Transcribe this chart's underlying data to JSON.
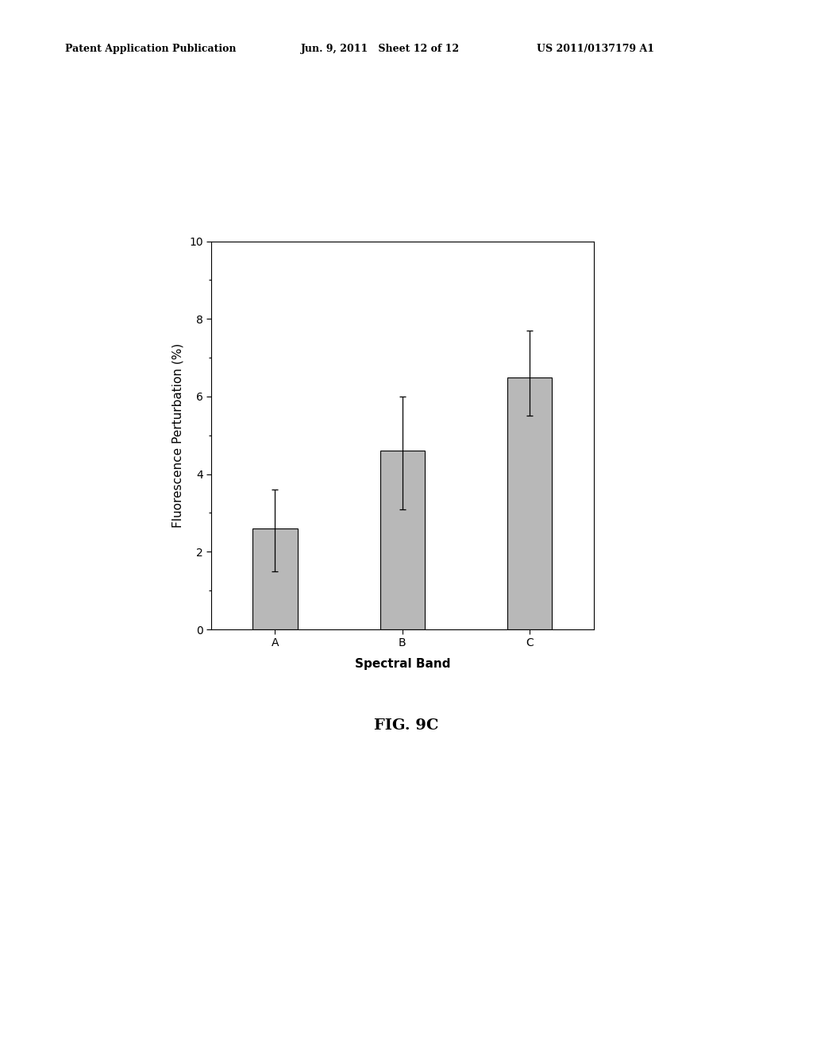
{
  "categories": [
    "A",
    "B",
    "C"
  ],
  "values": [
    2.6,
    4.6,
    6.5
  ],
  "yerr_upper": [
    1.0,
    1.4,
    1.2
  ],
  "yerr_lower": [
    1.1,
    1.5,
    1.0
  ],
  "bar_color": "#b8b8b8",
  "bar_edgecolor": "#000000",
  "bar_width": 0.35,
  "ylim": [
    0,
    10
  ],
  "yticks": [
    0,
    2,
    4,
    6,
    8,
    10
  ],
  "ylabel": "Fluorescence Perturbation (%)",
  "xlabel": "Spectral Band",
  "fig_label": "FIG. 9C",
  "header_left": "Patent Application Publication",
  "header_mid": "Jun. 9, 2011   Sheet 12 of 12",
  "header_right": "US 2011/0137179 A1",
  "background_color": "#ffffff",
  "axis_fontsize": 11,
  "tick_fontsize": 10,
  "header_fontsize": 9,
  "fig_label_fontsize": 14
}
